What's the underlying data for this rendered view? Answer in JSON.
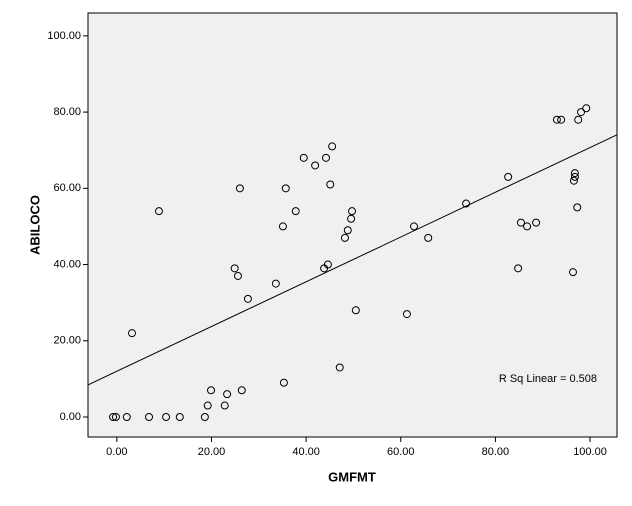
{
  "chart_data": {
    "type": "scatter",
    "x_label": "GMFMT",
    "y_label": "ABILOCO",
    "annotation": "R Sq Linear = 0.508",
    "x": [
      -0.8,
      -0.2,
      2.1,
      6.8,
      10.4,
      13.3,
      18.6,
      3.2,
      8.9,
      19.2,
      19.9,
      22.8,
      23.3,
      26.4,
      24.9,
      25.6,
      26.0,
      27.7,
      33.6,
      35.1,
      35.7,
      35.3,
      37.8,
      39.5,
      41.9,
      44.2,
      45.1,
      45.5,
      43.8,
      44.6,
      47.1,
      48.2,
      48.8,
      49.5,
      49.7,
      50.5,
      61.3,
      62.8,
      65.8,
      73.8,
      82.7,
      84.8,
      85.4,
      86.7,
      88.6,
      93.0,
      93.9,
      96.4,
      96.6,
      96.8,
      96.8,
      97.3,
      97.5,
      98.1,
      99.2
    ],
    "values": [
      0,
      0,
      0,
      0,
      0,
      0,
      0,
      22,
      54,
      3,
      7,
      3,
      6,
      7,
      39,
      37,
      60,
      31,
      35,
      50,
      60,
      9,
      54,
      68,
      66,
      68,
      61,
      71,
      39,
      40,
      13,
      47,
      49,
      52,
      54,
      28,
      27,
      50,
      47,
      56,
      63,
      39,
      51,
      50,
      51,
      78,
      78,
      38,
      62,
      63,
      64,
      55,
      78,
      80,
      81
    ],
    "fit_line": {
      "intercept": 12.0,
      "slope": 0.587
    },
    "xlim": [
      -6.1,
      105.7
    ],
    "ylim": [
      -5.25,
      106.0
    ],
    "xticks": [
      {
        "value": 0,
        "label": "0.00"
      },
      {
        "value": 20,
        "label": "20.00"
      },
      {
        "value": 40,
        "label": "40.00"
      },
      {
        "value": 60,
        "label": "60.00"
      },
      {
        "value": 80,
        "label": "80.00"
      },
      {
        "value": 100,
        "label": "100.00"
      }
    ],
    "yticks": [
      {
        "value": 0,
        "label": "0.00"
      },
      {
        "value": 20,
        "label": "20.00"
      },
      {
        "value": 40,
        "label": "40.00"
      },
      {
        "value": 60,
        "label": "60.00"
      },
      {
        "value": 80,
        "label": "80.00"
      },
      {
        "value": 100,
        "label": "100.00"
      }
    ],
    "color": "#000000",
    "background": "#f0f0f0"
  }
}
